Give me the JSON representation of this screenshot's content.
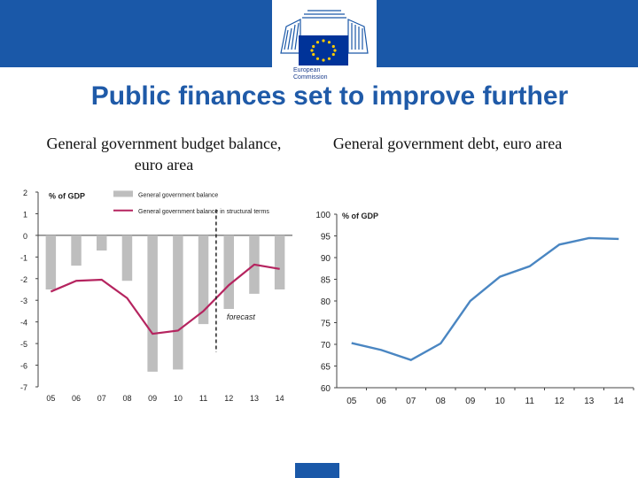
{
  "title": "Public finances set to improve further",
  "logo": {
    "text_line1": "European",
    "text_line2": "Commission",
    "flag_color": "#003399"
  },
  "colors": {
    "header_band": "#1a58a8",
    "title": "#1f5aa8",
    "bar": "#bebebe",
    "structural_line": "#b5245f",
    "debt_line": "#4a86c2"
  },
  "chart_data": [
    {
      "type": "bar",
      "title": "General government budget balance, euro area",
      "unit_label": "% of GDP",
      "categories": [
        "05",
        "06",
        "07",
        "08",
        "09",
        "10",
        "11",
        "12",
        "13",
        "14"
      ],
      "ylim": [
        -7,
        2
      ],
      "yticks": [
        2,
        1,
        0,
        -1,
        -2,
        -3,
        -4,
        -5,
        -6,
        -7
      ],
      "series": [
        {
          "name": "General government balance",
          "kind": "bar",
          "values": [
            -2.5,
            -1.4,
            -0.7,
            -2.1,
            -6.3,
            -6.2,
            -4.1,
            -3.4,
            -2.7,
            -2.5
          ]
        },
        {
          "name": "General government balance in structural terms",
          "kind": "line",
          "values": [
            -2.6,
            -2.1,
            -2.05,
            -2.9,
            -4.55,
            -4.4,
            -3.5,
            -2.3,
            -1.35,
            -1.55
          ]
        }
      ],
      "annotation": "forecast",
      "forecast_after": "11"
    },
    {
      "type": "line",
      "title": "General government debt, euro area",
      "unit_label": "% of GDP",
      "categories": [
        "05",
        "06",
        "07",
        "08",
        "09",
        "10",
        "11",
        "12",
        "13",
        "14"
      ],
      "ylim": [
        60,
        100
      ],
      "yticks": [
        100,
        95,
        90,
        85,
        80,
        75,
        70,
        65,
        60
      ],
      "series": [
        {
          "values": [
            70.3,
            68.7,
            66.4,
            70.2,
            80.0,
            85.6,
            88.0,
            93.0,
            94.5,
            94.3
          ]
        }
      ]
    }
  ]
}
